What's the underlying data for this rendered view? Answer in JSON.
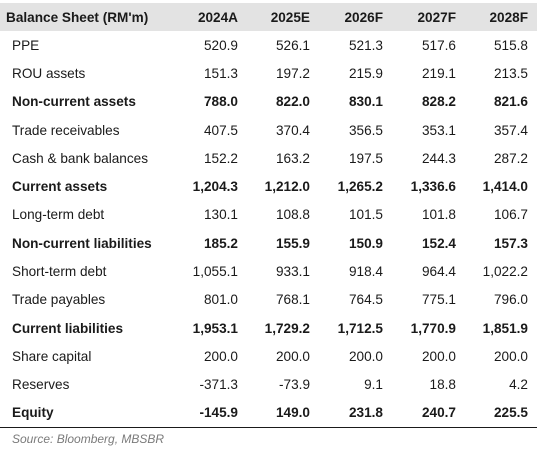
{
  "table": {
    "title": "Balance Sheet (RM'm)",
    "years": [
      "2024A",
      "2025E",
      "2026F",
      "2027F",
      "2028F"
    ],
    "rows": [
      {
        "label": "PPE",
        "bold": false,
        "values": [
          "520.9",
          "526.1",
          "521.3",
          "517.6",
          "515.8"
        ]
      },
      {
        "label": "ROU assets",
        "bold": false,
        "values": [
          "151.3",
          "197.2",
          "215.9",
          "219.1",
          "213.5"
        ]
      },
      {
        "label": "Non-current assets",
        "bold": true,
        "values": [
          "788.0",
          "822.0",
          "830.1",
          "828.2",
          "821.6"
        ]
      },
      {
        "label": "Trade receivables",
        "bold": false,
        "values": [
          "407.5",
          "370.4",
          "356.5",
          "353.1",
          "357.4"
        ]
      },
      {
        "label": "Cash & bank balances",
        "bold": false,
        "values": [
          "152.2",
          "163.2",
          "197.5",
          "244.3",
          "287.2"
        ]
      },
      {
        "label": "Current assets",
        "bold": true,
        "values": [
          "1,204.3",
          "1,212.0",
          "1,265.2",
          "1,336.6",
          "1,414.0"
        ]
      },
      {
        "label": "Long-term debt",
        "bold": false,
        "values": [
          "130.1",
          "108.8",
          "101.5",
          "101.8",
          "106.7"
        ]
      },
      {
        "label": "Non-current liabilities",
        "bold": true,
        "values": [
          "185.2",
          "155.9",
          "150.9",
          "152.4",
          "157.3"
        ]
      },
      {
        "label": "Short-term debt",
        "bold": false,
        "values": [
          "1,055.1",
          "933.1",
          "918.4",
          "964.4",
          "1,022.2"
        ]
      },
      {
        "label": "Trade payables",
        "bold": false,
        "values": [
          "801.0",
          "768.1",
          "764.5",
          "775.1",
          "796.0"
        ]
      },
      {
        "label": "Current liabilities",
        "bold": true,
        "values": [
          "1,953.1",
          "1,729.2",
          "1,712.5",
          "1,770.9",
          "1,851.9"
        ]
      },
      {
        "label": "Share capital",
        "bold": false,
        "values": [
          "200.0",
          "200.0",
          "200.0",
          "200.0",
          "200.0"
        ]
      },
      {
        "label": "Reserves",
        "bold": false,
        "values": [
          "-371.3",
          "-73.9",
          "9.1",
          "18.8",
          "4.2"
        ]
      },
      {
        "label": "Equity",
        "bold": true,
        "values": [
          "-145.9",
          "149.0",
          "231.8",
          "240.7",
          "225.5"
        ]
      }
    ]
  },
  "source": "Source: Bloomberg, MBSBR"
}
